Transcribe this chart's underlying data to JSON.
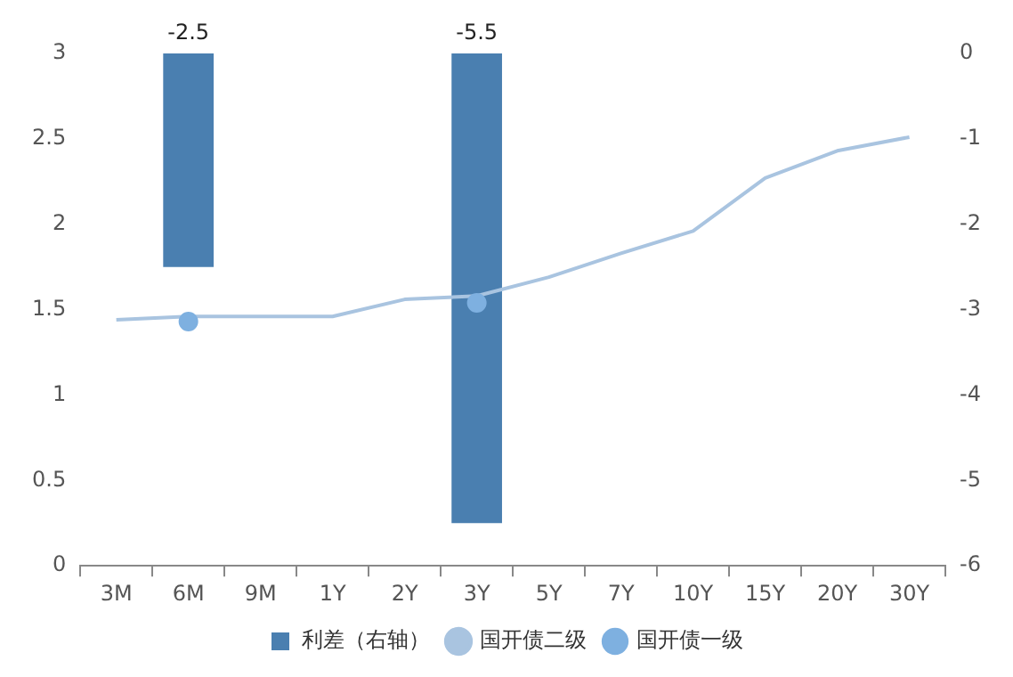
{
  "chart_data": {
    "type": "bar",
    "categories": [
      "3M",
      "6M",
      "9M",
      "1Y",
      "2Y",
      "3Y",
      "5Y",
      "7Y",
      "10Y",
      "15Y",
      "20Y",
      "30Y"
    ],
    "series": [
      {
        "name": "利差（右轴）",
        "axis": "y2",
        "color": "#4a7fb0",
        "values": [
          null,
          -2.5,
          null,
          null,
          null,
          -5.5,
          null,
          null,
          null,
          null,
          null,
          null
        ],
        "value_labels": [
          null,
          "-2.5",
          null,
          null,
          null,
          "-5.5",
          null,
          null,
          null,
          null,
          null,
          null
        ]
      },
      {
        "name": "国开债二级",
        "type": "line",
        "color": "#a9c4e0",
        "marker": "none",
        "values": [
          1.44,
          1.46,
          1.46,
          1.46,
          1.56,
          1.58,
          1.69,
          1.83,
          1.96,
          2.27,
          2.43,
          2.51
        ]
      },
      {
        "name": "国开债一级",
        "type": "scatter",
        "color": "#7eb0e0",
        "marker": "circle",
        "x": [
          "6M",
          "3Y"
        ],
        "values": [
          1.43,
          1.54
        ]
      }
    ],
    "ylim": [
      0,
      3
    ],
    "yticks": [
      0,
      0.5,
      1,
      1.5,
      2,
      2.5,
      3
    ],
    "y2lim": [
      -6,
      0
    ],
    "y2ticks": [
      -6,
      -5,
      -4,
      -3,
      -2,
      -1,
      0
    ],
    "grid": false,
    "legend": "bottom"
  }
}
